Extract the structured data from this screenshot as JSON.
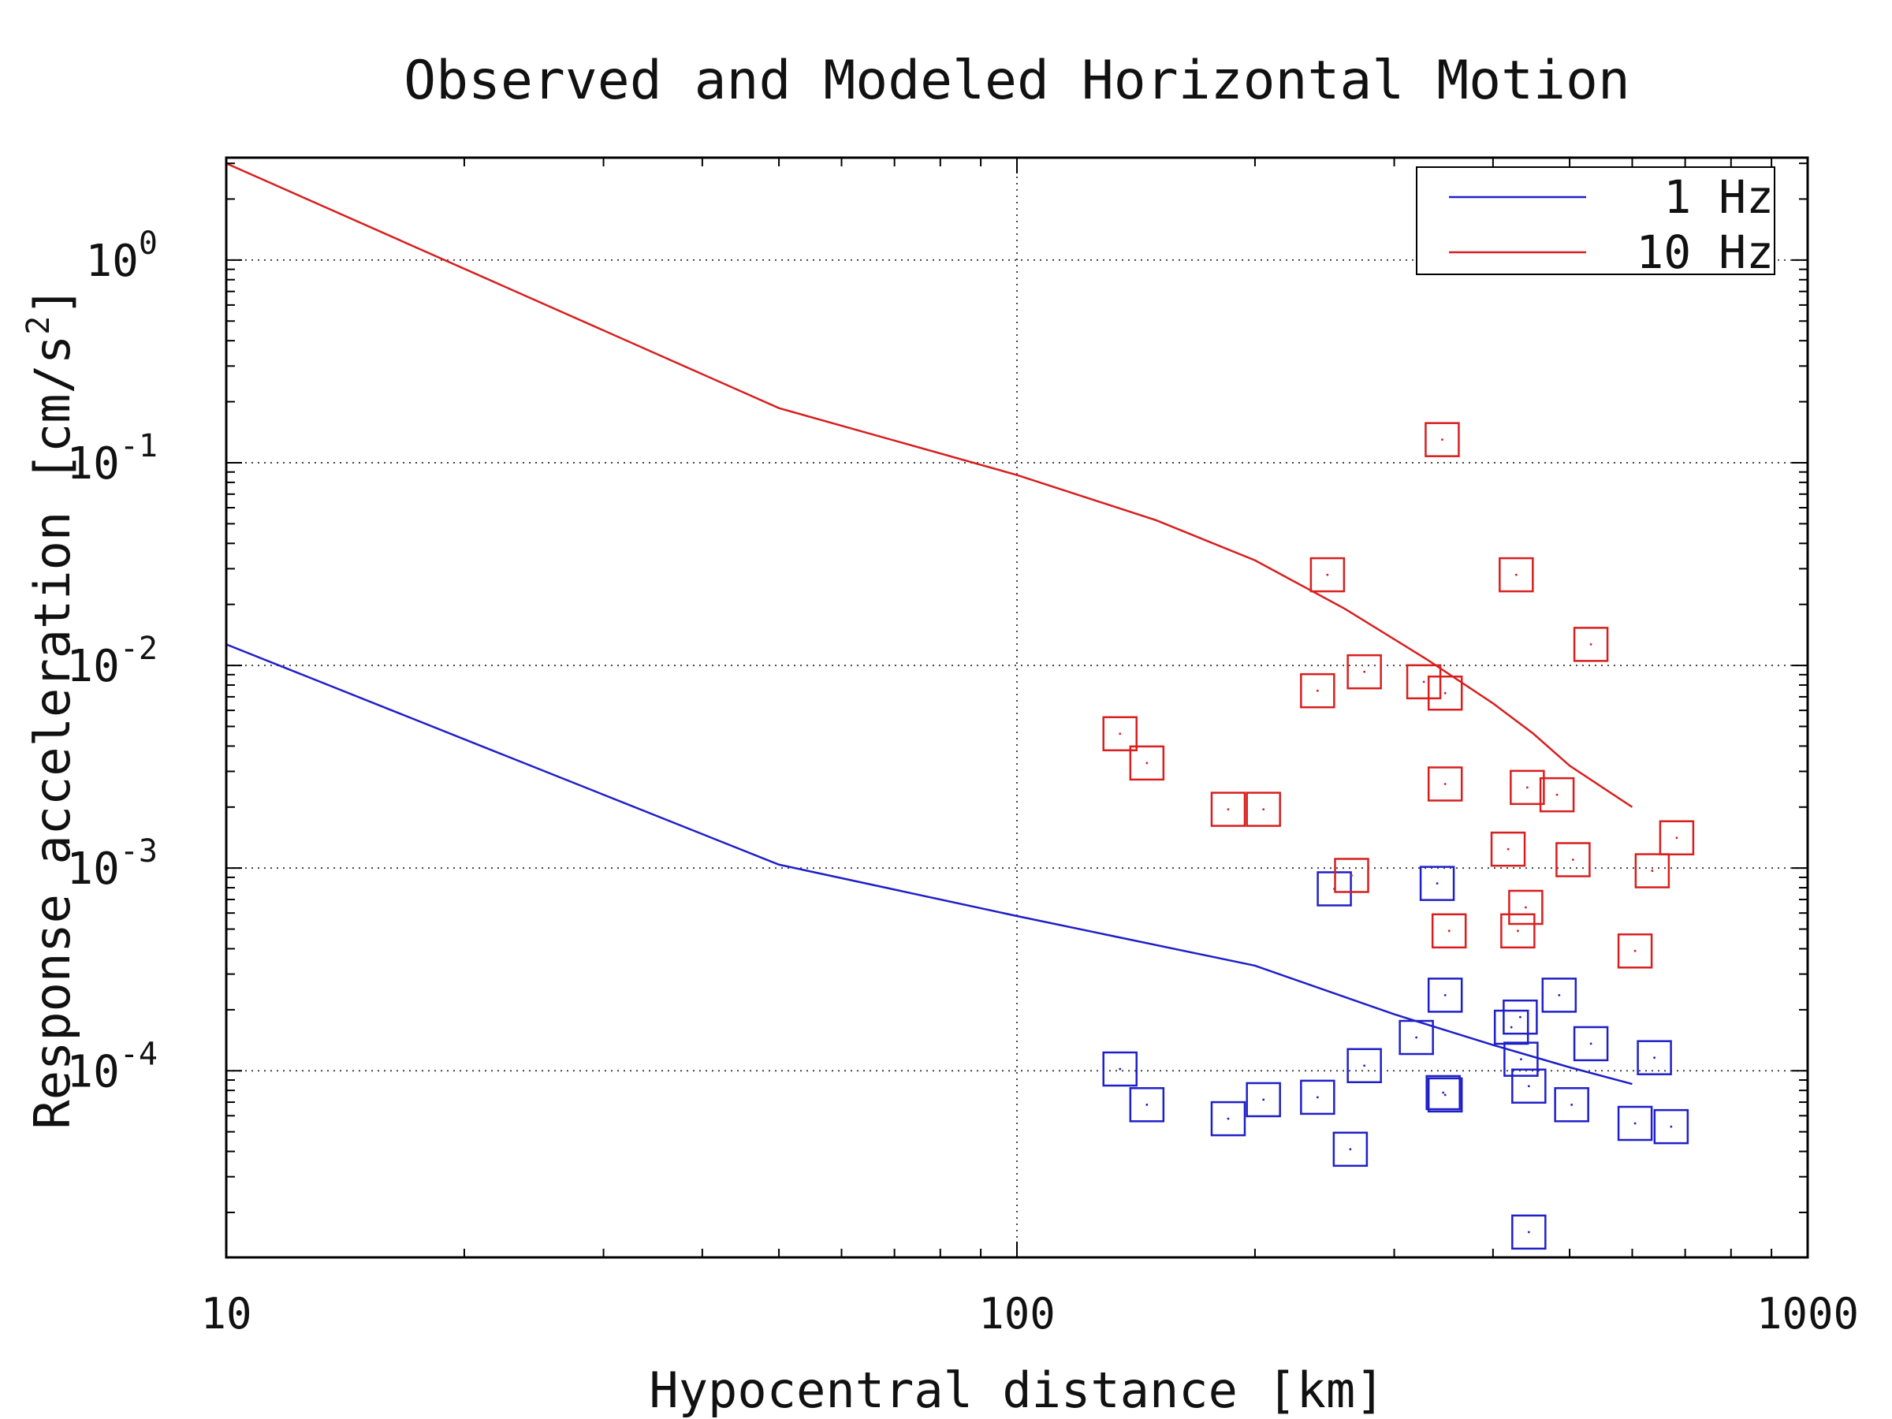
{
  "chart_data": {
    "type": "scatter",
    "title": "Observed and Modeled Horizontal Motion",
    "xlabel": "Hypocentral distance [km]",
    "ylabel": "Response acceleration [cm/s",
    "ylabel_sup": "2",
    "ylabel_end": "]",
    "x_scale": "log",
    "y_scale": "log",
    "xlim": [
      10,
      1000
    ],
    "ylim": [
      1.2e-05,
      3.2
    ],
    "grid": true,
    "legend_position": "top-right",
    "x_ticks": [
      {
        "value": 10,
        "label": "10"
      },
      {
        "value": 100,
        "label": "100"
      },
      {
        "value": 1000,
        "label": "1000"
      }
    ],
    "y_ticks": [
      {
        "value": 1,
        "base": "10",
        "exp": "0"
      },
      {
        "value": 0.1,
        "base": "10",
        "exp": "-1"
      },
      {
        "value": 0.01,
        "base": "10",
        "exp": "-2"
      },
      {
        "value": 0.001,
        "base": "10",
        "exp": "-3"
      },
      {
        "value": 0.0001,
        "base": "10",
        "exp": "-4"
      }
    ],
    "series": [
      {
        "name": "1 Hz",
        "color": "#1f1fc8",
        "model_line": [
          [
            10,
            0.0127
          ],
          [
            50,
            0.00104
          ],
          [
            100,
            0.00058
          ],
          [
            200,
            0.00033
          ],
          [
            300,
            0.00019
          ],
          [
            400,
            0.000134
          ],
          [
            500,
            0.000104
          ],
          [
            600,
            8.6e-05
          ]
        ],
        "observed": [
          [
            135,
            0.000102
          ],
          [
            146,
            6.8e-05
          ],
          [
            185,
            5.8e-05
          ],
          [
            205,
            7.2e-05
          ],
          [
            240,
            7.4e-05
          ],
          [
            264,
            4.1e-05
          ],
          [
            275,
            0.000106
          ],
          [
            252,
            0.00079
          ],
          [
            320,
            0.000146
          ],
          [
            340,
            0.00084
          ],
          [
            346,
            7.8e-05
          ],
          [
            348,
            7.6e-05
          ],
          [
            348,
            0.000236
          ],
          [
            422,
            0.000164
          ],
          [
            433,
            0.000184
          ],
          [
            434,
            0.000114
          ],
          [
            444,
            8.4e-05
          ],
          [
            444,
            1.6e-05
          ],
          [
            485,
            0.000236
          ],
          [
            503,
            6.8e-05
          ],
          [
            532,
            0.000136
          ],
          [
            605,
            5.5e-05
          ],
          [
            640,
            0.000116
          ],
          [
            672,
            5.3e-05
          ]
        ]
      },
      {
        "name": "10 Hz",
        "color": "#d81e1e",
        "model_line": [
          [
            10,
            3.0
          ],
          [
            50,
            0.186
          ],
          [
            100,
            0.087
          ],
          [
            150,
            0.052
          ],
          [
            200,
            0.033
          ],
          [
            260,
            0.019
          ],
          [
            330,
            0.0107
          ],
          [
            400,
            0.0065
          ],
          [
            450,
            0.0046
          ],
          [
            500,
            0.0032
          ],
          [
            600,
            0.002
          ]
        ],
        "observed": [
          [
            135,
            0.0046
          ],
          [
            146,
            0.0033
          ],
          [
            185,
            0.00195
          ],
          [
            205,
            0.00195
          ],
          [
            240,
            0.0075
          ],
          [
            247,
            0.028
          ],
          [
            265,
            0.00092
          ],
          [
            275,
            0.0093
          ],
          [
            327,
            0.0083
          ],
          [
            345,
            0.13
          ],
          [
            348,
            0.0073
          ],
          [
            348,
            0.0026
          ],
          [
            352,
            0.00049
          ],
          [
            418,
            0.00124
          ],
          [
            428,
            0.028
          ],
          [
            430,
            0.00049
          ],
          [
            440,
            0.00064
          ],
          [
            442,
            0.0025
          ],
          [
            482,
            0.0023
          ],
          [
            505,
            0.0011
          ],
          [
            532,
            0.0127
          ],
          [
            605,
            0.00039
          ],
          [
            636,
            0.00097
          ],
          [
            683,
            0.00141
          ]
        ]
      }
    ]
  }
}
